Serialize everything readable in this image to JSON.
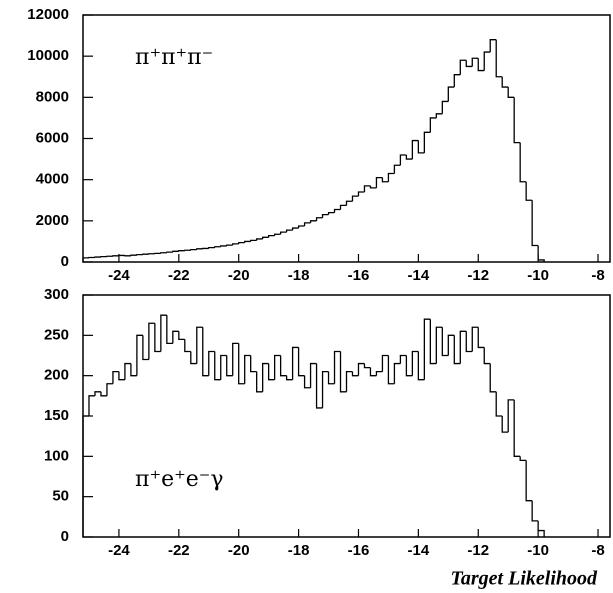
{
  "chart_data": [
    {
      "type": "histogram",
      "annotation": "π⁺π⁺π⁻",
      "bins": [
        -25.2,
        -25,
        -24.8,
        -24.6,
        -24.4,
        -24.2,
        -24,
        -23.8,
        -23.6,
        -23.4,
        -23.2,
        -23,
        -22.8,
        -22.6,
        -22.4,
        -22.2,
        -22,
        -21.8,
        -21.6,
        -21.4,
        -21.2,
        -21,
        -20.8,
        -20.6,
        -20.4,
        -20.2,
        -20,
        -19.8,
        -19.6,
        -19.4,
        -19.2,
        -19,
        -18.8,
        -18.6,
        -18.4,
        -18.2,
        -18,
        -17.8,
        -17.6,
        -17.4,
        -17.2,
        -17,
        -16.8,
        -16.6,
        -16.4,
        -16.2,
        -16,
        -15.8,
        -15.6,
        -15.4,
        -15.2,
        -15,
        -14.8,
        -14.6,
        -14.4,
        -14.2,
        -14,
        -13.8,
        -13.6,
        -13.4,
        -13.2,
        -13,
        -12.8,
        -12.6,
        -12.4,
        -12.2,
        -12,
        -11.8,
        -11.6,
        -11.4,
        -11.2,
        -11,
        -10.8,
        -10.6,
        -10.4,
        -10.2,
        -10,
        -9.8
      ],
      "values": [
        200,
        220,
        240,
        260,
        280,
        300,
        320,
        300,
        330,
        360,
        380,
        400,
        420,
        450,
        480,
        520,
        550,
        570,
        600,
        640,
        660,
        700,
        740,
        780,
        820,
        880,
        940,
        1000,
        1050,
        1120,
        1200,
        1280,
        1350,
        1450,
        1550,
        1650,
        1750,
        1900,
        2000,
        2150,
        2300,
        2400,
        2550,
        2750,
        2950,
        3200,
        3400,
        3700,
        3600,
        4100,
        3900,
        4300,
        4700,
        5200,
        5000,
        5900,
        5300,
        6300,
        7000,
        7200,
        7800,
        8500,
        9100,
        9800,
        9500,
        9900,
        9300,
        10200,
        10800,
        9000,
        8500,
        8000,
        5800,
        3900,
        3000,
        800,
        100
      ],
      "color": "#000000",
      "xlim": [
        -25.2,
        -7.6
      ],
      "xticks": [
        -24,
        -22,
        -20,
        -18,
        -16,
        -14,
        -12,
        -10,
        -8
      ],
      "ylim": [
        0,
        12000
      ],
      "yticks": [
        0,
        2000,
        4000,
        6000,
        8000,
        10000,
        12000
      ]
    },
    {
      "type": "histogram",
      "annotation": "π⁺e⁺e⁻γ",
      "x_label": "Target Likelihood",
      "bins": [
        -25.2,
        -25,
        -24.8,
        -24.6,
        -24.4,
        -24.2,
        -24,
        -23.8,
        -23.6,
        -23.4,
        -23.2,
        -23,
        -22.8,
        -22.6,
        -22.4,
        -22.2,
        -22,
        -21.8,
        -21.6,
        -21.4,
        -21.2,
        -21,
        -20.8,
        -20.6,
        -20.4,
        -20.2,
        -20,
        -19.8,
        -19.6,
        -19.4,
        -19.2,
        -19,
        -18.8,
        -18.6,
        -18.4,
        -18.2,
        -18,
        -17.8,
        -17.6,
        -17.4,
        -17.2,
        -17,
        -16.8,
        -16.6,
        -16.4,
        -16.2,
        -16,
        -15.8,
        -15.6,
        -15.4,
        -15.2,
        -15,
        -14.8,
        -14.6,
        -14.4,
        -14.2,
        -14,
        -13.8,
        -13.6,
        -13.4,
        -13.2,
        -13,
        -12.8,
        -12.6,
        -12.4,
        -12.2,
        -12,
        -11.8,
        -11.6,
        -11.4,
        -11.2,
        -11,
        -10.8,
        -10.6,
        -10.4,
        -10.2,
        -10,
        -9.8
      ],
      "values": [
        150,
        175,
        180,
        175,
        190,
        205,
        195,
        215,
        200,
        250,
        220,
        265,
        230,
        275,
        240,
        255,
        245,
        230,
        215,
        260,
        200,
        230,
        195,
        225,
        200,
        240,
        190,
        225,
        205,
        180,
        215,
        195,
        225,
        200,
        195,
        235,
        200,
        185,
        215,
        160,
        205,
        190,
        230,
        180,
        205,
        200,
        215,
        210,
        200,
        205,
        225,
        190,
        215,
        225,
        200,
        230,
        195,
        270,
        215,
        260,
        225,
        250,
        215,
        255,
        230,
        260,
        235,
        215,
        180,
        150,
        130,
        170,
        100,
        95,
        45,
        20,
        8
      ],
      "color": "#000000",
      "xlim": [
        -25.2,
        -7.6
      ],
      "xticks": [
        -24,
        -22,
        -20,
        -18,
        -16,
        -14,
        -12,
        -10,
        -8
      ],
      "ylim": [
        0,
        300
      ],
      "yticks": [
        0,
        50,
        100,
        150,
        200,
        250,
        300
      ]
    }
  ]
}
